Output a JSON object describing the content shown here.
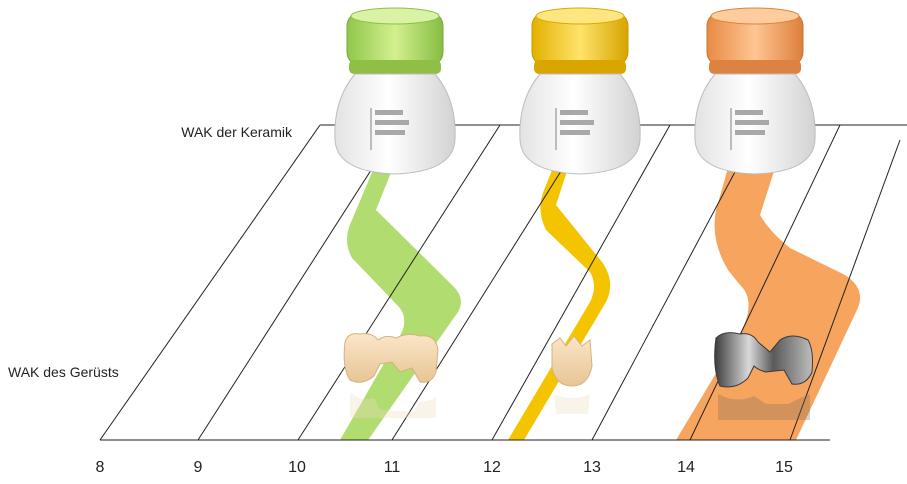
{
  "labels": {
    "top": "WAK der Keramik",
    "bottom": "WAK des Gerüsts"
  },
  "axis": {
    "ticks": [
      "8",
      "9",
      "10",
      "11",
      "12",
      "13",
      "14",
      "15"
    ]
  },
  "bottles": [
    {
      "name": "green-ceramic-bottle",
      "color": "#a9d85f",
      "band": "#8fbf45"
    },
    {
      "name": "yellow-ceramic-bottle",
      "color": "#f7c600",
      "band": "#d9a600"
    },
    {
      "name": "orange-ceramic-bottle",
      "color": "#f7a15c",
      "band": "#dd8240"
    }
  ],
  "ribbons": [
    {
      "name": "green-ribbon",
      "color": "#a9d85f"
    },
    {
      "name": "yellow-ribbon",
      "color": "#f5c400"
    },
    {
      "name": "orange-ribbon",
      "color": "#f7a45e"
    }
  ],
  "restorations": [
    {
      "name": "ceramic-bridge-icon"
    },
    {
      "name": "single-crown-icon"
    },
    {
      "name": "metal-bridge-icon"
    }
  ]
}
